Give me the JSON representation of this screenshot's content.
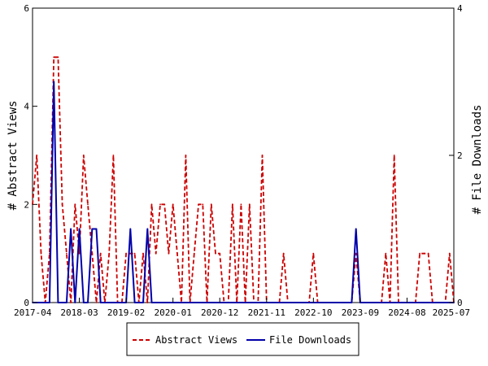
{
  "chart_data": {
    "type": "line",
    "x_ticks": [
      "2017-04",
      "2018-03",
      "2019-02",
      "2020-01",
      "2020-12",
      "2021-11",
      "2022-10",
      "2023-09",
      "2024-08",
      "2025-07"
    ],
    "xlim": [
      "2017-04",
      "2025-07"
    ],
    "y_left": {
      "label": "# Abstract Views",
      "range": [
        0,
        6
      ],
      "ticks": [
        "0",
        "2",
        "4",
        "6"
      ]
    },
    "y_right": {
      "label": "# File Downloads",
      "range": [
        0,
        4
      ],
      "ticks": [
        "0",
        "2",
        "4"
      ]
    },
    "legend_position": "bottom",
    "grid": false,
    "series": [
      {
        "name": "Abstract Views",
        "axis": "left",
        "color": "#cc0000",
        "style": "dashed",
        "points": [
          [
            "2017-04",
            2
          ],
          [
            "2017-05",
            3
          ],
          [
            "2017-06",
            1
          ],
          [
            "2017-07",
            0
          ],
          [
            "2017-08",
            1
          ],
          [
            "2017-09",
            5
          ],
          [
            "2017-10",
            5
          ],
          [
            "2017-11",
            2
          ],
          [
            "2017-12",
            1
          ],
          [
            "2018-01",
            0
          ],
          [
            "2018-02",
            2
          ],
          [
            "2018-03",
            1
          ],
          [
            "2018-04",
            3
          ],
          [
            "2018-05",
            2
          ],
          [
            "2018-06",
            1
          ],
          [
            "2018-07",
            0
          ],
          [
            "2018-08",
            1
          ],
          [
            "2018-09",
            0
          ],
          [
            "2018-10",
            1
          ],
          [
            "2018-11",
            3
          ],
          [
            "2018-12",
            0
          ],
          [
            "2019-01",
            0
          ],
          [
            "2019-02",
            1
          ],
          [
            "2019-03",
            1
          ],
          [
            "2019-04",
            1
          ],
          [
            "2019-05",
            0
          ],
          [
            "2019-06",
            1
          ],
          [
            "2019-07",
            0
          ],
          [
            "2019-08",
            2
          ],
          [
            "2019-09",
            1
          ],
          [
            "2019-10",
            2
          ],
          [
            "2019-11",
            2
          ],
          [
            "2019-12",
            1
          ],
          [
            "2020-01",
            2
          ],
          [
            "2020-02",
            1
          ],
          [
            "2020-03",
            0
          ],
          [
            "2020-04",
            3
          ],
          [
            "2020-05",
            0
          ],
          [
            "2020-06",
            1
          ],
          [
            "2020-07",
            2
          ],
          [
            "2020-08",
            2
          ],
          [
            "2020-09",
            0
          ],
          [
            "2020-10",
            2
          ],
          [
            "2020-11",
            1
          ],
          [
            "2020-12",
            1
          ],
          [
            "2021-01",
            0
          ],
          [
            "2021-02",
            0
          ],
          [
            "2021-03",
            2
          ],
          [
            "2021-04",
            0
          ],
          [
            "2021-05",
            2
          ],
          [
            "2021-06",
            0
          ],
          [
            "2021-07",
            2
          ],
          [
            "2021-08",
            0
          ],
          [
            "2021-09",
            0
          ],
          [
            "2021-10",
            3
          ],
          [
            "2021-11",
            0
          ],
          [
            "2021-12",
            0
          ],
          [
            "2022-01",
            0
          ],
          [
            "2022-02",
            0
          ],
          [
            "2022-03",
            1
          ],
          [
            "2022-04",
            0
          ],
          [
            "2022-05",
            0
          ],
          [
            "2022-06",
            0
          ],
          [
            "2022-07",
            0
          ],
          [
            "2022-08",
            0
          ],
          [
            "2022-09",
            0
          ],
          [
            "2022-10",
            1
          ],
          [
            "2022-11",
            0
          ],
          [
            "2022-12",
            0
          ],
          [
            "2023-01",
            0
          ],
          [
            "2023-02",
            0
          ],
          [
            "2023-03",
            0
          ],
          [
            "2023-04",
            0
          ],
          [
            "2023-05",
            0
          ],
          [
            "2023-06",
            0
          ],
          [
            "2023-07",
            0
          ],
          [
            "2023-08",
            1
          ],
          [
            "2023-09",
            0
          ],
          [
            "2023-10",
            0
          ],
          [
            "2023-11",
            0
          ],
          [
            "2023-12",
            0
          ],
          [
            "2024-01",
            0
          ],
          [
            "2024-02",
            0
          ],
          [
            "2024-03",
            1
          ],
          [
            "2024-04",
            0
          ],
          [
            "2024-05",
            3
          ],
          [
            "2024-06",
            0
          ],
          [
            "2024-07",
            0
          ],
          [
            "2024-08",
            0
          ],
          [
            "2024-09",
            0
          ],
          [
            "2024-10",
            0
          ],
          [
            "2024-11",
            1
          ],
          [
            "2024-12",
            1
          ],
          [
            "2025-01",
            1
          ],
          [
            "2025-02",
            0
          ],
          [
            "2025-03",
            0
          ],
          [
            "2025-04",
            0
          ],
          [
            "2025-05",
            0
          ],
          [
            "2025-06",
            1
          ],
          [
            "2025-07",
            0
          ]
        ]
      },
      {
        "name": "File Downloads",
        "axis": "right",
        "color": "#0000aa",
        "style": "solid",
        "points": [
          [
            "2017-04",
            0
          ],
          [
            "2017-05",
            0
          ],
          [
            "2017-06",
            0
          ],
          [
            "2017-07",
            0
          ],
          [
            "2017-08",
            0
          ],
          [
            "2017-09",
            3
          ],
          [
            "2017-10",
            0
          ],
          [
            "2017-11",
            0
          ],
          [
            "2017-12",
            0
          ],
          [
            "2018-01",
            1
          ],
          [
            "2018-02",
            0
          ],
          [
            "2018-03",
            1
          ],
          [
            "2018-04",
            0
          ],
          [
            "2018-05",
            0
          ],
          [
            "2018-06",
            1
          ],
          [
            "2018-07",
            1
          ],
          [
            "2018-08",
            0
          ],
          [
            "2018-09",
            0
          ],
          [
            "2018-10",
            0
          ],
          [
            "2018-11",
            0
          ],
          [
            "2018-12",
            0
          ],
          [
            "2019-01",
            0
          ],
          [
            "2019-02",
            0
          ],
          [
            "2019-03",
            1
          ],
          [
            "2019-04",
            0
          ],
          [
            "2019-05",
            0
          ],
          [
            "2019-06",
            0
          ],
          [
            "2019-07",
            1
          ],
          [
            "2019-08",
            0
          ],
          [
            "2019-09",
            0
          ],
          [
            "2019-10",
            0
          ],
          [
            "2019-11",
            0
          ],
          [
            "2019-12",
            0
          ],
          [
            "2020-01",
            0
          ],
          [
            "2020-02",
            0
          ],
          [
            "2020-03",
            0
          ],
          [
            "2020-04",
            0
          ],
          [
            "2020-05",
            0
          ],
          [
            "2020-06",
            0
          ],
          [
            "2020-07",
            0
          ],
          [
            "2020-08",
            0
          ],
          [
            "2020-09",
            0
          ],
          [
            "2020-10",
            0
          ],
          [
            "2020-11",
            0
          ],
          [
            "2020-12",
            0
          ],
          [
            "2021-01",
            0
          ],
          [
            "2021-02",
            0
          ],
          [
            "2021-03",
            0
          ],
          [
            "2021-04",
            0
          ],
          [
            "2021-05",
            0
          ],
          [
            "2021-06",
            0
          ],
          [
            "2021-07",
            0
          ],
          [
            "2021-08",
            0
          ],
          [
            "2021-09",
            0
          ],
          [
            "2021-10",
            0
          ],
          [
            "2021-11",
            0
          ],
          [
            "2021-12",
            0
          ],
          [
            "2022-01",
            0
          ],
          [
            "2022-02",
            0
          ],
          [
            "2022-03",
            0
          ],
          [
            "2022-04",
            0
          ],
          [
            "2022-05",
            0
          ],
          [
            "2022-06",
            0
          ],
          [
            "2022-07",
            0
          ],
          [
            "2022-08",
            0
          ],
          [
            "2022-09",
            0
          ],
          [
            "2022-10",
            0
          ],
          [
            "2022-11",
            0
          ],
          [
            "2022-12",
            0
          ],
          [
            "2023-01",
            0
          ],
          [
            "2023-02",
            0
          ],
          [
            "2023-03",
            0
          ],
          [
            "2023-04",
            0
          ],
          [
            "2023-05",
            0
          ],
          [
            "2023-06",
            0
          ],
          [
            "2023-07",
            0
          ],
          [
            "2023-08",
            1
          ],
          [
            "2023-09",
            0
          ],
          [
            "2023-10",
            0
          ],
          [
            "2023-11",
            0
          ],
          [
            "2023-12",
            0
          ],
          [
            "2024-01",
            0
          ],
          [
            "2024-02",
            0
          ],
          [
            "2024-03",
            0
          ],
          [
            "2024-04",
            0
          ],
          [
            "2024-05",
            0
          ],
          [
            "2024-06",
            0
          ],
          [
            "2024-07",
            0
          ],
          [
            "2024-08",
            0
          ],
          [
            "2024-09",
            0
          ],
          [
            "2024-10",
            0
          ],
          [
            "2024-11",
            0
          ],
          [
            "2024-12",
            0
          ],
          [
            "2025-01",
            0
          ],
          [
            "2025-02",
            0
          ],
          [
            "2025-03",
            0
          ],
          [
            "2025-04",
            0
          ],
          [
            "2025-05",
            0
          ],
          [
            "2025-06",
            0
          ],
          [
            "2025-07",
            0
          ]
        ]
      }
    ]
  }
}
